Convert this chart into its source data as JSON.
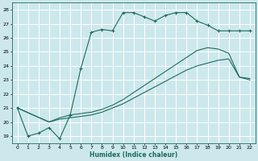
{
  "xlabel": "Humidex (Indice chaleur)",
  "bg_color": "#cce8ec",
  "grid_color": "#ffffff",
  "line_color": "#1e6b5e",
  "xlim": [
    -0.5,
    22.5
  ],
  "ylim": [
    18.5,
    28.5
  ],
  "xticks": [
    0,
    1,
    2,
    3,
    4,
    5,
    6,
    7,
    8,
    9,
    10,
    11,
    12,
    13,
    14,
    15,
    16,
    17,
    18,
    19,
    20,
    21,
    22
  ],
  "yticks": [
    19,
    20,
    21,
    22,
    23,
    24,
    25,
    26,
    27,
    28
  ],
  "line1_x": [
    0,
    1,
    2,
    3,
    4,
    5,
    6,
    7,
    8,
    9,
    10,
    11,
    12,
    13,
    14,
    15,
    16,
    17,
    18,
    19,
    20,
    21,
    22
  ],
  "line1_y": [
    21,
    19,
    19.2,
    19.6,
    18.8,
    20.5,
    23.8,
    26.4,
    26.6,
    26.5,
    27.8,
    27.8,
    27.5,
    27.2,
    27.6,
    27.8,
    27.8,
    27.2,
    26.9,
    26.5,
    26.5,
    26.5,
    26.5
  ],
  "line2_x": [
    0,
    3,
    4,
    5,
    6,
    7,
    8,
    9,
    10,
    11,
    12,
    13,
    14,
    15,
    16,
    17,
    18,
    19,
    20,
    21,
    22
  ],
  "line2_y": [
    21,
    20.0,
    20.3,
    20.5,
    20.6,
    20.7,
    20.9,
    21.2,
    21.6,
    22.1,
    22.6,
    23.1,
    23.6,
    24.1,
    24.6,
    25.1,
    25.3,
    25.2,
    24.9,
    23.2,
    23.1
  ],
  "line3_x": [
    0,
    3,
    4,
    5,
    6,
    7,
    8,
    9,
    10,
    11,
    12,
    13,
    14,
    15,
    16,
    17,
    18,
    19,
    20,
    21,
    22
  ],
  "line3_y": [
    21,
    20.0,
    20.2,
    20.3,
    20.4,
    20.5,
    20.7,
    21.0,
    21.3,
    21.7,
    22.1,
    22.5,
    22.9,
    23.3,
    23.7,
    24.0,
    24.2,
    24.4,
    24.5,
    23.2,
    23.0
  ]
}
